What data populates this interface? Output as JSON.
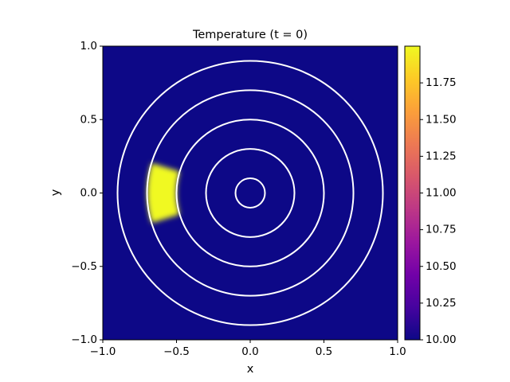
{
  "chart_data": {
    "type": "heatmap",
    "title": "Temperature  (t = 0)",
    "xlabel": "x",
    "ylabel": "y",
    "xlim": [
      -1,
      1
    ],
    "ylim": [
      -1,
      1
    ],
    "xticks": [
      {
        "value": -1,
        "label": "−1.0"
      },
      {
        "value": -0.5,
        "label": "−0.5"
      },
      {
        "value": 0,
        "label": "0.0"
      },
      {
        "value": 0.5,
        "label": "0.5"
      },
      {
        "value": 1,
        "label": "1.0"
      }
    ],
    "yticks": [
      {
        "value": -1,
        "label": "−1.0"
      },
      {
        "value": -0.5,
        "label": "−0.5"
      },
      {
        "value": 0,
        "label": "0.0"
      },
      {
        "value": 0.5,
        "label": "0.5"
      },
      {
        "value": 1,
        "label": "1.0"
      }
    ],
    "background_value": 10,
    "hotspot": {
      "r": [
        0.5,
        0.7
      ],
      "theta_deg": [
        163,
        197
      ],
      "value": 12
    },
    "contour_radii": [
      0.1,
      0.3,
      0.5,
      0.7,
      0.9
    ],
    "contour_color": "#ffffff",
    "clim": [
      10,
      12
    ],
    "colorbar_ticks": [
      {
        "value": 10,
        "label": "10.00"
      },
      {
        "value": 10.25,
        "label": "10.25"
      },
      {
        "value": 10.5,
        "label": "10.50"
      },
      {
        "value": 10.75,
        "label": "10.75"
      },
      {
        "value": 11,
        "label": "11.00"
      },
      {
        "value": 11.25,
        "label": "11.25"
      },
      {
        "value": 11.5,
        "label": "11.50"
      },
      {
        "value": 11.75,
        "label": "11.75"
      }
    ],
    "colormap": [
      "#0d0887",
      "#46039f",
      "#7201a8",
      "#9c179e",
      "#bd3786",
      "#d8576b",
      "#ed7953",
      "#fb9f3a",
      "#fdca26",
      "#f0f921"
    ]
  }
}
